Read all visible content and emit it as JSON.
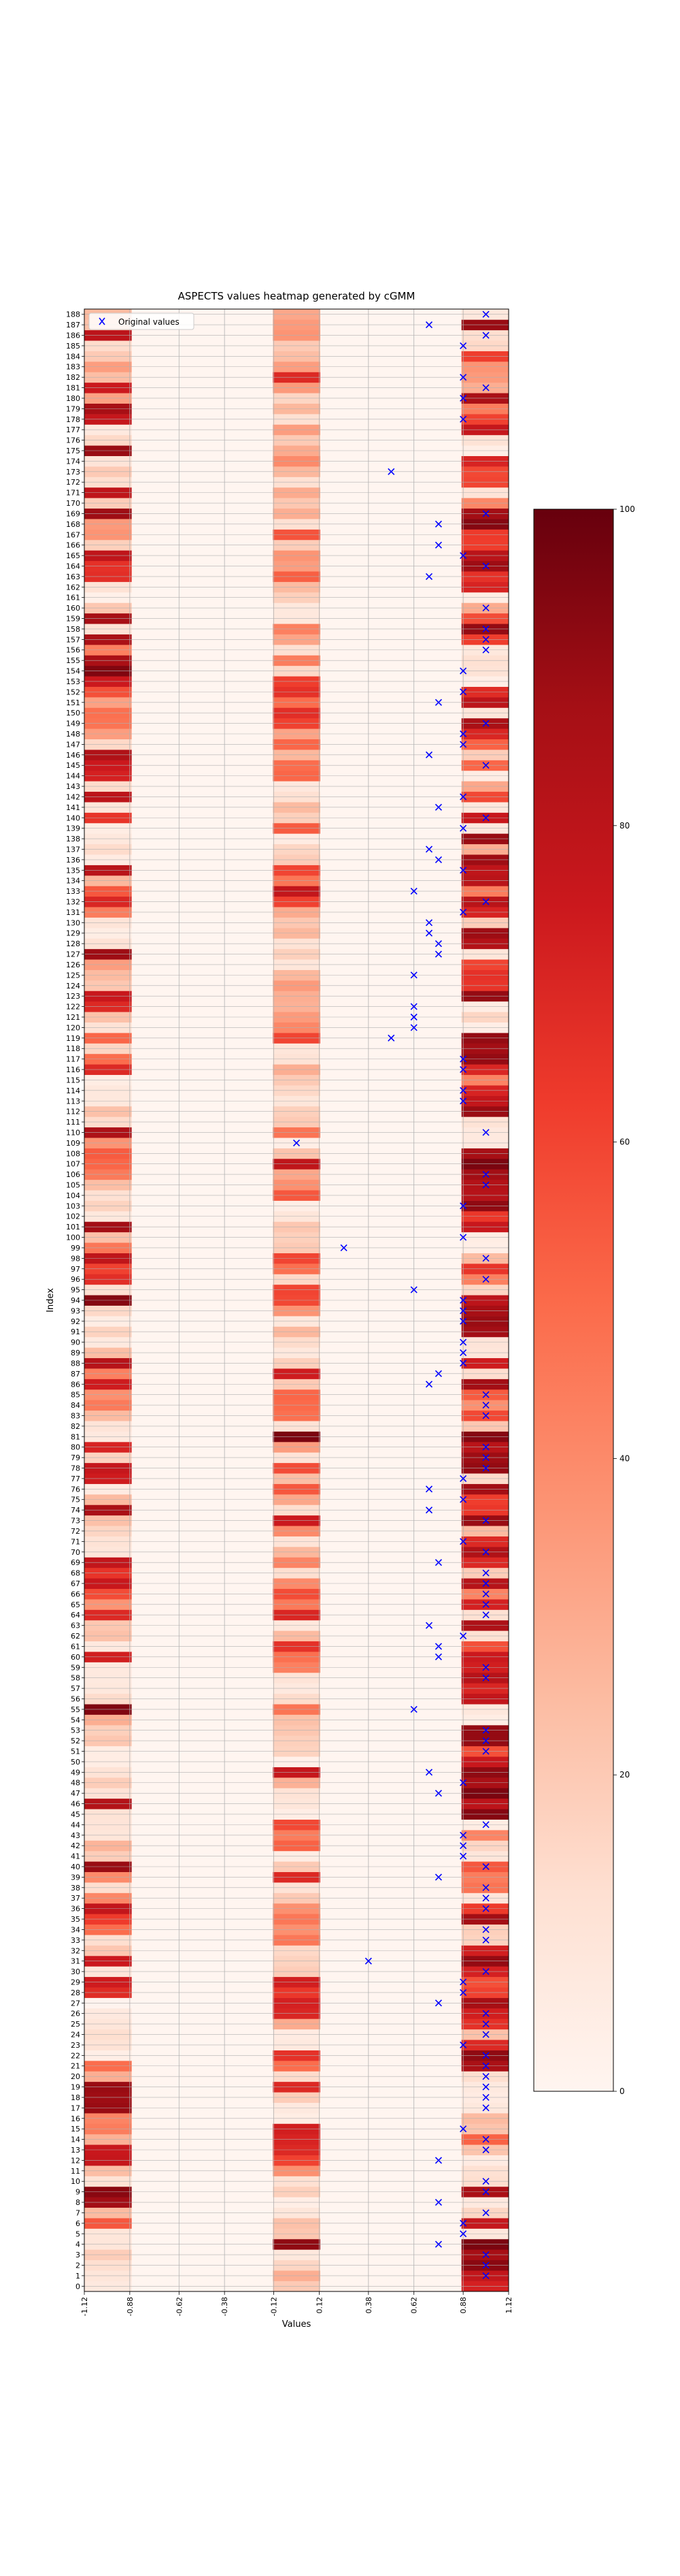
{
  "chart_data": {
    "type": "heatmap",
    "title": "ASPECTS values heatmap generated by cGMM",
    "xlabel": "Values",
    "ylabel": "Index",
    "x_ticks": [
      "-1.12",
      "-0.88",
      "-0.62",
      "-0.38",
      "-0.12",
      "0.12",
      "0.38",
      "0.62",
      "0.88",
      "1.12"
    ],
    "xlim": [
      -1.12,
      1.12
    ],
    "columns": 9,
    "rows": 189,
    "colormap": "Reds",
    "colorbar": {
      "min": 0,
      "max": 100,
      "ticks": [
        0,
        20,
        40,
        60,
        80,
        100
      ]
    },
    "legend": {
      "label": "Original values",
      "placement": "upper-left",
      "marker_color": "#0000ff"
    },
    "heat_columns": [
      {
        "column": 0,
        "x_value": -1.0,
        "values": [
          7,
          9,
          13,
          19,
          9,
          9,
          55,
          25,
          88,
          93,
          11,
          24,
          77,
          76,
          28,
          44,
          42,
          90,
          89,
          90,
          29,
          49,
          4,
          11,
          13,
          9,
          7,
          1,
          68,
          74,
          9,
          75,
          21,
          13,
          49,
          63,
          78,
          41,
          13,
          40,
          90,
          19,
          27,
          9,
          10,
          11,
          83,
          11,
          19,
          11,
          5,
          5,
          21,
          18,
          29,
          95,
          14,
          8,
          7,
          7,
          73,
          7,
          23,
          21,
          69,
          37,
          58,
          76,
          65,
          78,
          9,
          11,
          16,
          23,
          86,
          25,
          6,
          74,
          77,
          17,
          71,
          7,
          10,
          25,
          45,
          38,
          74,
          43,
          82,
          24,
          7,
          17,
          5,
          15,
          94,
          12,
          67,
          61,
          79,
          46,
          23,
          88,
          8,
          17,
          12,
          24,
          45,
          51,
          54,
          37,
          85,
          14,
          23,
          8,
          8,
          5,
          69,
          49,
          16,
          51,
          11,
          23,
          69,
          76,
          21,
          25,
          34,
          89,
          11,
          5,
          10,
          44,
          70,
          55,
          26,
          81,
          6,
          14,
          8,
          5,
          65,
          9,
          80,
          14,
          72,
          75,
          84,
          15,
          34,
          47,
          48,
          33,
          57,
          75,
          95,
          86,
          43,
          86,
          11,
          87,
          21,
          3,
          11,
          67,
          66,
          79,
          18,
          37,
          35,
          89,
          19,
          79,
          13,
          20,
          10,
          90,
          15,
          7,
          77,
          87,
          33,
          75,
          24,
          34,
          20,
          14,
          80,
          23,
          25
        ]
      },
      {
        "column": 4,
        "x_value": 0.0,
        "values": [
          20,
          29,
          16,
          8,
          92,
          21,
          23,
          9,
          4,
          18,
          12,
          38,
          61,
          69,
          71,
          73,
          5,
          7,
          19,
          69,
          14,
          49,
          66,
          7,
          6,
          30,
          70,
          72,
          64,
          73,
          19,
          17,
          15,
          46,
          38,
          46,
          38,
          20,
          11,
          69,
          20,
          5,
          52,
          44,
          59,
          4,
          9,
          11,
          28,
          77,
          3,
          17,
          18,
          21,
          23,
          47,
          14,
          7,
          10,
          43,
          48,
          66,
          25,
          8,
          70,
          45,
          58,
          40,
          13,
          42,
          26,
          10,
          40,
          75,
          13,
          31,
          55,
          24,
          58,
          10,
          34,
          96,
          11,
          48,
          50,
          51,
          20,
          74,
          18,
          8,
          14,
          26,
          8,
          37,
          59,
          60,
          15,
          48,
          60,
          20,
          18,
          21,
          9,
          4,
          55,
          38,
          31,
          79,
          22,
          4,
          47,
          20,
          18,
          9,
          15,
          20,
          29,
          11,
          9,
          60,
          41,
          35,
          28,
          29,
          35,
          26,
          9,
          18,
          11,
          26,
          21,
          30,
          61,
          78,
          46,
          60,
          19,
          16,
          6,
          54,
          18,
          25,
          12,
          8,
          51,
          49,
          26,
          51,
          32,
          61,
          67,
          49,
          66,
          62,
          15,
          44,
          12,
          32,
          43,
          8,
          8,
          18,
          25,
          53,
          34,
          37,
          19,
          56,
          12,
          29,
          21,
          30,
          12,
          26,
          40,
          30,
          20,
          34,
          12,
          26,
          16,
          35,
          69,
          34,
          24,
          20,
          37,
          35,
          31
        ]
      },
      {
        "column": 8,
        "x_value": 1.0,
        "values": [
          72,
          78,
          93,
          87,
          96,
          8,
          77,
          16,
          7,
          86,
          13,
          12,
          6,
          22,
          52,
          22,
          25,
          8,
          6,
          7,
          13,
          86,
          92,
          69,
          23,
          66,
          73,
          87,
          61,
          57,
          72,
          91,
          73,
          17,
          18,
          88,
          63,
          9,
          47,
          44,
          55,
          9,
          16,
          42,
          5,
          94,
          80,
          96,
          86,
          92,
          76,
          57,
          91,
          91,
          5,
          8,
          78,
          70,
          82,
          73,
          75,
          57,
          12,
          85,
          12,
          72,
          42,
          82,
          19,
          69,
          84,
          69,
          25,
          90,
          64,
          62,
          88,
          14,
          91,
          89,
          81,
          94,
          21,
          59,
          38,
          54,
          88,
          13,
          74,
          9,
          10,
          88,
          90,
          87,
          80,
          16,
          43,
          65,
          25,
          4,
          5,
          76,
          64,
          92,
          82,
          83,
          88,
          96,
          87,
          7,
          7,
          11,
          90,
          78,
          71,
          42,
          70,
          91,
          88,
          91,
          4,
          16,
          5,
          91,
          65,
          66,
          60,
          9,
          83,
          89,
          19,
          71,
          81,
          44,
          81,
          79,
          89,
          29,
          90,
          7,
          76,
          8,
          59,
          31,
          5,
          51,
          19,
          52,
          70,
          86,
          9,
          80,
          68,
          4,
          11,
          12,
          8,
          62,
          91,
          58,
          30,
          5,
          71,
          66,
          89,
          81,
          62,
          63,
          94,
          88,
          41,
          10,
          60,
          59,
          71,
          4,
          11,
          77,
          61,
          44,
          86,
          29,
          35,
          37,
          62,
          15,
          13,
          90,
          8
        ]
      }
    ],
    "scatter": {
      "name": "Original values",
      "points": [
        {
          "y": 1,
          "x": 1.0
        },
        {
          "y": 2,
          "x": 1.0
        },
        {
          "y": 3,
          "x": 1.0
        },
        {
          "y": 4,
          "x": 0.75
        },
        {
          "y": 5,
          "x": 0.88
        },
        {
          "y": 6,
          "x": 0.88
        },
        {
          "y": 7,
          "x": 1.0
        },
        {
          "y": 8,
          "x": 0.75
        },
        {
          "y": 9,
          "x": 1.0
        },
        {
          "y": 10,
          "x": 1.0
        },
        {
          "y": 12,
          "x": 0.75
        },
        {
          "y": 13,
          "x": 1.0
        },
        {
          "y": 14,
          "x": 1.0
        },
        {
          "y": 15,
          "x": 0.88
        },
        {
          "y": 17,
          "x": 1.0
        },
        {
          "y": 18,
          "x": 1.0
        },
        {
          "y": 19,
          "x": 1.0
        },
        {
          "y": 20,
          "x": 1.0
        },
        {
          "y": 21,
          "x": 1.0
        },
        {
          "y": 22,
          "x": 1.0
        },
        {
          "y": 23,
          "x": 0.88
        },
        {
          "y": 24,
          "x": 1.0
        },
        {
          "y": 25,
          "x": 1.0
        },
        {
          "y": 26,
          "x": 1.0
        },
        {
          "y": 27,
          "x": 0.75
        },
        {
          "y": 28,
          "x": 0.88
        },
        {
          "y": 29,
          "x": 0.88
        },
        {
          "y": 30,
          "x": 1.0
        },
        {
          "y": 31,
          "x": 0.38
        },
        {
          "y": 33,
          "x": 1.0
        },
        {
          "y": 34,
          "x": 1.0
        },
        {
          "y": 36,
          "x": 1.0
        },
        {
          "y": 37,
          "x": 1.0
        },
        {
          "y": 38,
          "x": 1.0
        },
        {
          "y": 39,
          "x": 0.75
        },
        {
          "y": 40,
          "x": 1.0
        },
        {
          "y": 41,
          "x": 0.88
        },
        {
          "y": 42,
          "x": 0.88
        },
        {
          "y": 43,
          "x": 0.88
        },
        {
          "y": 44,
          "x": 1.0
        },
        {
          "y": 47,
          "x": 0.75
        },
        {
          "y": 48,
          "x": 0.88
        },
        {
          "y": 49,
          "x": 0.7
        },
        {
          "y": 51,
          "x": 1.0
        },
        {
          "y": 52,
          "x": 1.0
        },
        {
          "y": 53,
          "x": 1.0
        },
        {
          "y": 55,
          "x": 0.62
        },
        {
          "y": 58,
          "x": 1.0
        },
        {
          "y": 59,
          "x": 1.0
        },
        {
          "y": 60,
          "x": 0.75
        },
        {
          "y": 61,
          "x": 0.75
        },
        {
          "y": 62,
          "x": 0.88
        },
        {
          "y": 63,
          "x": 0.7
        },
        {
          "y": 64,
          "x": 1.0
        },
        {
          "y": 65,
          "x": 1.0
        },
        {
          "y": 66,
          "x": 1.0
        },
        {
          "y": 67,
          "x": 1.0
        },
        {
          "y": 68,
          "x": 1.0
        },
        {
          "y": 69,
          "x": 0.75
        },
        {
          "y": 70,
          "x": 1.0
        },
        {
          "y": 71,
          "x": 0.88
        },
        {
          "y": 73,
          "x": 1.0
        },
        {
          "y": 74,
          "x": 0.7
        },
        {
          "y": 75,
          "x": 0.88
        },
        {
          "y": 76,
          "x": 0.7
        },
        {
          "y": 77,
          "x": 0.88
        },
        {
          "y": 78,
          "x": 1.0
        },
        {
          "y": 79,
          "x": 1.0
        },
        {
          "y": 80,
          "x": 1.0
        },
        {
          "y": 83,
          "x": 1.0
        },
        {
          "y": 84,
          "x": 1.0
        },
        {
          "y": 85,
          "x": 1.0
        },
        {
          "y": 86,
          "x": 0.7
        },
        {
          "y": 87,
          "x": 0.75
        },
        {
          "y": 88,
          "x": 0.88
        },
        {
          "y": 89,
          "x": 0.88
        },
        {
          "y": 90,
          "x": 0.88
        },
        {
          "y": 92,
          "x": 0.88
        },
        {
          "y": 93,
          "x": 0.88
        },
        {
          "y": 94,
          "x": 0.88
        },
        {
          "y": 95,
          "x": 0.62
        },
        {
          "y": 96,
          "x": 1.0
        },
        {
          "y": 98,
          "x": 1.0
        },
        {
          "y": 99,
          "x": 0.25
        },
        {
          "y": 100,
          "x": 0.88
        },
        {
          "y": 103,
          "x": 0.88
        },
        {
          "y": 105,
          "x": 1.0
        },
        {
          "y": 106,
          "x": 1.0
        },
        {
          "y": 109,
          "x": 0.0
        },
        {
          "y": 110,
          "x": 1.0
        },
        {
          "y": 113,
          "x": 0.88
        },
        {
          "y": 114,
          "x": 0.88
        },
        {
          "y": 116,
          "x": 0.88
        },
        {
          "y": 117,
          "x": 0.88
        },
        {
          "y": 119,
          "x": 0.5
        },
        {
          "y": 120,
          "x": 0.62
        },
        {
          "y": 121,
          "x": 0.62
        },
        {
          "y": 122,
          "x": 0.62
        },
        {
          "y": 125,
          "x": 0.62
        },
        {
          "y": 127,
          "x": 0.75
        },
        {
          "y": 128,
          "x": 0.75
        },
        {
          "y": 129,
          "x": 0.7
        },
        {
          "y": 130,
          "x": 0.7
        },
        {
          "y": 131,
          "x": 0.88
        },
        {
          "y": 132,
          "x": 1.0
        },
        {
          "y": 133,
          "x": 0.62
        },
        {
          "y": 135,
          "x": 0.88
        },
        {
          "y": 136,
          "x": 0.75
        },
        {
          "y": 137,
          "x": 0.7
        },
        {
          "y": 139,
          "x": 0.88
        },
        {
          "y": 140,
          "x": 1.0
        },
        {
          "y": 141,
          "x": 0.75
        },
        {
          "y": 142,
          "x": 0.88
        },
        {
          "y": 145,
          "x": 1.0
        },
        {
          "y": 146,
          "x": 0.7
        },
        {
          "y": 147,
          "x": 0.88
        },
        {
          "y": 148,
          "x": 0.88
        },
        {
          "y": 149,
          "x": 1.0
        },
        {
          "y": 151,
          "x": 0.75
        },
        {
          "y": 152,
          "x": 0.88
        },
        {
          "y": 154,
          "x": 0.88
        },
        {
          "y": 156,
          "x": 1.0
        },
        {
          "y": 157,
          "x": 1.0
        },
        {
          "y": 158,
          "x": 1.0
        },
        {
          "y": 160,
          "x": 1.0
        },
        {
          "y": 163,
          "x": 0.7
        },
        {
          "y": 164,
          "x": 1.0
        },
        {
          "y": 165,
          "x": 0.88
        },
        {
          "y": 166,
          "x": 0.75
        },
        {
          "y": 168,
          "x": 0.75
        },
        {
          "y": 169,
          "x": 1.0
        },
        {
          "y": 173,
          "x": 0.5
        },
        {
          "y": 178,
          "x": 0.88
        },
        {
          "y": 180,
          "x": 0.88
        },
        {
          "y": 181,
          "x": 1.0
        },
        {
          "y": 182,
          "x": 0.88
        },
        {
          "y": 185,
          "x": 0.88
        },
        {
          "y": 186,
          "x": 1.0
        },
        {
          "y": 187,
          "x": 0.7
        },
        {
          "y": 188,
          "x": 1.0
        }
      ]
    }
  }
}
